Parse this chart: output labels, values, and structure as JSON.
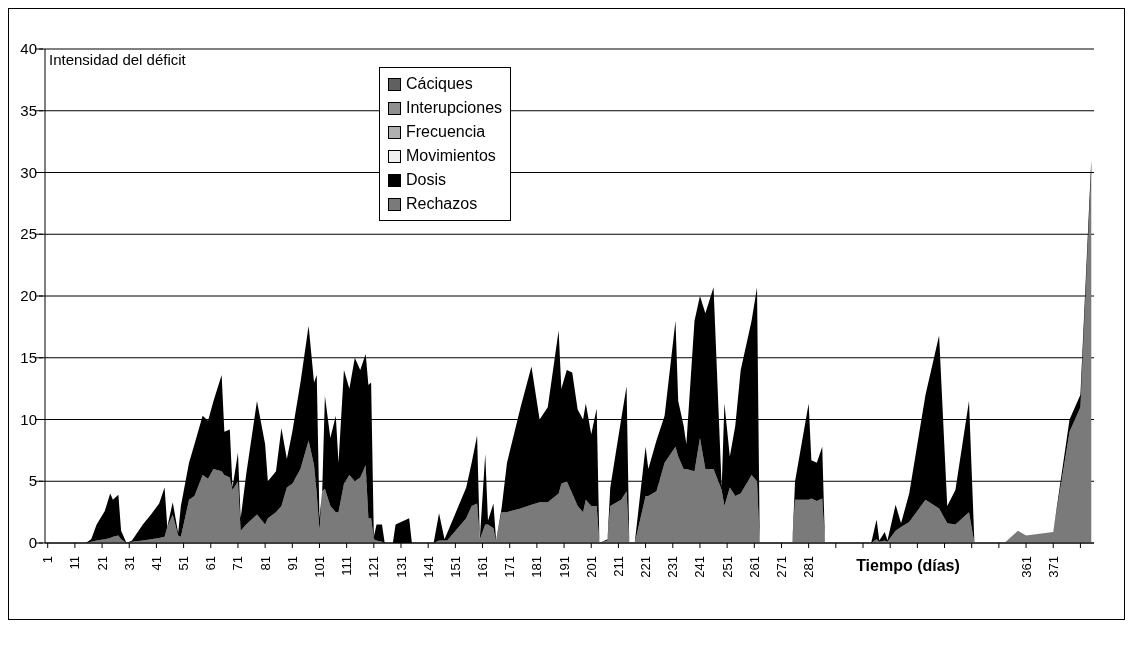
{
  "chart_data": {
    "type": "area",
    "stacked": true,
    "annotations": [
      "Intensidad del déficit"
    ],
    "xlabel": "Tiempo (días)",
    "x": [
      1,
      15,
      17,
      19,
      22,
      24,
      25,
      27,
      28,
      30,
      32,
      36,
      39,
      42,
      44,
      45,
      47,
      49,
      50,
      53,
      55,
      58,
      60,
      62,
      65,
      66,
      68,
      69,
      71,
      72,
      74,
      78,
      81,
      82,
      85,
      87,
      89,
      91,
      94,
      97,
      99,
      100,
      101,
      102,
      103,
      105,
      107,
      108,
      110,
      112,
      114,
      116,
      118,
      119,
      120,
      121,
      122,
      124,
      125,
      128,
      129,
      134,
      135,
      143,
      145,
      147,
      148,
      155,
      157,
      159,
      160,
      162,
      163,
      165,
      166,
      168,
      170,
      175,
      179,
      182,
      185,
      189,
      190,
      192,
      194,
      196,
      198,
      199,
      201,
      203,
      204,
      207,
      208,
      212,
      214,
      215,
      217,
      221,
      222,
      225,
      228,
      232,
      233,
      235,
      236,
      239,
      241,
      243,
      246,
      249,
      250,
      252,
      254,
      256,
      260,
      262,
      263,
      275,
      276,
      281,
      282,
      284,
      286,
      287,
      304,
      306,
      307,
      309,
      310,
      313,
      315,
      318,
      324,
      329,
      332,
      335,
      340,
      342,
      353,
      358,
      361,
      371,
      377,
      381,
      385
    ],
    "series": [
      {
        "name": "Rechazos",
        "color": "#7a7a7a",
        "values": [
          0,
          0,
          0.1,
          0.2,
          0.3,
          0.4,
          0.5,
          0.6,
          0.3,
          0,
          0.1,
          0.2,
          0.3,
          0.4,
          0.5,
          1.3,
          2.3,
          0.6,
          0.5,
          3.5,
          3.8,
          5.5,
          5.2,
          6,
          5.8,
          5.5,
          5.3,
          4.3,
          5,
          1,
          1.5,
          2.3,
          1.5,
          2,
          2.5,
          3,
          4.5,
          4.8,
          6,
          8.3,
          6.3,
          4,
          1,
          4.2,
          4.4,
          3,
          2.5,
          2.5,
          4.8,
          5.5,
          5,
          5.3,
          6.3,
          2,
          2,
          0.3,
          0.2,
          0.1,
          0,
          0,
          0,
          0,
          0,
          0,
          0.2,
          0.2,
          0.2,
          2,
          3,
          3.2,
          0.3,
          1.5,
          1.5,
          1.2,
          0.1,
          2.5,
          2.5,
          2.8,
          3.1,
          3.3,
          3.3,
          4,
          4.8,
          5,
          4,
          3,
          2.5,
          3.5,
          3,
          3,
          0,
          0.2,
          3,
          3.5,
          4.2,
          0,
          0,
          3.8,
          3.8,
          4.2,
          6.5,
          7.8,
          7,
          6,
          6,
          5.8,
          8.5,
          6,
          6,
          4.3,
          3,
          4.5,
          3.8,
          4,
          5.5,
          5,
          0,
          0,
          3.5,
          3.5,
          3.6,
          3.4,
          3.6,
          0,
          0,
          0.3,
          0.1,
          0.2,
          0.1,
          1,
          1.3,
          1.7,
          3.5,
          2.8,
          1.6,
          1.5,
          2.5,
          0,
          0,
          1,
          0.6,
          0.9,
          9,
          11,
          30
        ]
      },
      {
        "name": "Dosis",
        "color": "#000000",
        "values": [
          0,
          0,
          0.2,
          1.3,
          2.3,
          3.6,
          3,
          3.3,
          0.7,
          0,
          0.1,
          1.3,
          2,
          2.8,
          4,
          0,
          1,
          0.2,
          2.5,
          3,
          4.2,
          4.8,
          4.7,
          5.5,
          7.8,
          3.5,
          3.9,
          0.2,
          2.3,
          1,
          4,
          9.2,
          6.5,
          3,
          3.3,
          6.3,
          2.3,
          4.2,
          7,
          9.3,
          6.7,
          9.6,
          1,
          0,
          7.5,
          5.5,
          7.8,
          4,
          9.2,
          7,
          10,
          8.7,
          9,
          10.8,
          11,
          0.2,
          1.3,
          1.4,
          0,
          0,
          1.5,
          2,
          0,
          0,
          2.2,
          0.1,
          0.6,
          2.5,
          3.5,
          5.5,
          0,
          5.7,
          0.3,
          2,
          0.1,
          0.3,
          4,
          8.2,
          11.2,
          6.7,
          7.7,
          13.2,
          7.7,
          9,
          9.8,
          7.8,
          7.5,
          7.8,
          5.8,
          7.9,
          0,
          0.1,
          1.5,
          6.5,
          8.5,
          0,
          0,
          4,
          2.2,
          4.1,
          3.8,
          10.2,
          4.5,
          3.5,
          2,
          12.2,
          11.5,
          12.6,
          14.7,
          0.2,
          8.3,
          2.5,
          5.7,
          10,
          12.5,
          15.7,
          0,
          0,
          1.5,
          7.8,
          3.1,
          3.1,
          4.2,
          0,
          0,
          1.6,
          0.1,
          0.7,
          0.1,
          2.1,
          0.3,
          2.3,
          8.5,
          14,
          1.4,
          2.8,
          9,
          0,
          0,
          0,
          0,
          0,
          1,
          1,
          1
        ]
      },
      {
        "name": "Movimientos",
        "color": "#f0f0f0",
        "values": [
          null,
          null,
          null,
          null,
          null,
          null,
          null,
          null,
          null,
          null,
          null,
          null,
          null,
          null,
          null,
          null,
          null,
          null,
          null,
          null,
          null,
          null,
          null,
          null,
          null,
          null,
          null,
          null,
          null,
          null,
          null,
          null,
          null,
          null,
          null,
          null,
          null,
          null,
          null,
          null,
          null,
          null,
          null,
          null,
          null,
          null,
          null,
          null,
          null,
          null,
          null,
          null,
          null,
          null,
          null,
          null,
          null,
          null,
          null,
          null,
          null,
          null,
          null,
          null,
          null,
          null,
          null,
          null,
          null,
          null,
          null,
          null,
          null,
          null,
          null,
          null,
          null,
          null,
          null,
          null,
          null,
          null,
          null,
          null,
          null,
          null,
          null,
          null,
          null,
          null,
          null,
          null,
          null,
          null,
          null,
          null,
          null,
          null,
          null,
          null,
          null,
          null,
          null,
          null,
          null,
          null,
          null,
          null,
          null,
          null,
          null,
          null,
          null,
          null,
          null,
          null,
          null,
          null,
          null,
          null,
          null,
          null,
          null,
          null,
          null,
          null,
          null,
          null,
          null,
          null,
          null,
          null,
          null,
          null,
          null,
          null,
          null,
          null,
          null,
          null,
          null,
          null,
          null,
          null,
          null
        ]
      },
      {
        "name": "Frecuencia",
        "color": "#b0b0b0",
        "values": [
          null,
          null,
          null,
          null,
          null,
          null,
          null,
          null,
          null,
          null,
          null,
          null,
          null,
          null,
          null,
          null,
          null,
          null,
          null,
          null,
          null,
          null,
          null,
          null,
          null,
          null,
          null,
          null,
          null,
          null,
          null,
          null,
          null,
          null,
          null,
          null,
          null,
          null,
          null,
          null,
          null,
          null,
          null,
          null,
          null,
          null,
          null,
          null,
          null,
          null,
          null,
          null,
          null,
          null,
          null,
          null,
          null,
          null,
          null,
          null,
          null,
          null,
          null,
          null,
          null,
          null,
          null,
          null,
          null,
          null,
          null,
          null,
          null,
          null,
          null,
          null,
          null,
          null,
          null,
          null,
          null,
          null,
          null,
          null,
          null,
          null,
          null,
          null,
          null,
          null,
          null,
          null,
          null,
          null,
          null,
          null,
          null,
          null,
          null,
          null,
          null,
          null,
          null,
          null,
          null,
          null,
          null,
          null,
          null,
          null,
          null,
          null,
          null,
          null,
          null,
          null,
          null,
          null,
          null,
          null,
          null,
          null,
          null,
          null,
          null,
          null,
          null,
          null,
          null,
          null,
          null,
          null,
          null,
          null,
          null,
          null,
          null,
          null,
          null,
          null,
          null,
          null,
          null,
          null,
          null
        ]
      },
      {
        "name": "Interupciones",
        "color": "#909090",
        "values": [
          null,
          null,
          null,
          null,
          null,
          null,
          null,
          null,
          null,
          null,
          null,
          null,
          null,
          null,
          null,
          null,
          null,
          null,
          null,
          null,
          null,
          null,
          null,
          null,
          null,
          null,
          null,
          null,
          null,
          null,
          null,
          null,
          null,
          null,
          null,
          null,
          null,
          null,
          null,
          null,
          null,
          null,
          null,
          null,
          null,
          null,
          null,
          null,
          null,
          null,
          null,
          null,
          null,
          null,
          null,
          null,
          null,
          null,
          null,
          null,
          null,
          null,
          null,
          null,
          null,
          null,
          null,
          null,
          null,
          null,
          null,
          null,
          null,
          null,
          null,
          null,
          null,
          null,
          null,
          null,
          null,
          null,
          null,
          null,
          null,
          null,
          null,
          null,
          null,
          null,
          null,
          null,
          null,
          null,
          null,
          null,
          null,
          null,
          null,
          null,
          null,
          null,
          null,
          null,
          null,
          null,
          null,
          null,
          null,
          null,
          null,
          null,
          null,
          null,
          null,
          null,
          null,
          null,
          null,
          null,
          null,
          null,
          null,
          null,
          null,
          null,
          null,
          null,
          null,
          null,
          null,
          null,
          null,
          null,
          null,
          null,
          null,
          null,
          null,
          null,
          null,
          null,
          null,
          null,
          null
        ]
      },
      {
        "name": "Cáciques",
        "color": "#606060",
        "values": [
          null,
          null,
          null,
          null,
          null,
          null,
          null,
          null,
          null,
          null,
          null,
          null,
          null,
          null,
          null,
          null,
          null,
          null,
          null,
          null,
          null,
          null,
          null,
          null,
          null,
          null,
          null,
          null,
          null,
          null,
          null,
          null,
          null,
          null,
          null,
          null,
          null,
          null,
          null,
          null,
          null,
          null,
          null,
          null,
          null,
          null,
          null,
          null,
          null,
          null,
          null,
          null,
          null,
          null,
          null,
          null,
          null,
          null,
          null,
          null,
          null,
          null,
          null,
          null,
          null,
          null,
          null,
          null,
          null,
          null,
          null,
          null,
          null,
          null,
          null,
          null,
          null,
          null,
          null,
          null,
          null,
          null,
          null,
          null,
          null,
          null,
          null,
          null,
          null,
          null,
          null,
          null,
          null,
          null,
          null,
          null,
          null,
          null,
          null,
          null,
          null,
          null,
          null,
          null,
          null,
          null,
          null,
          null,
          null,
          null,
          null,
          null,
          null,
          null,
          null,
          null,
          null,
          null,
          null,
          null,
          null,
          null,
          null,
          null,
          null,
          null,
          null,
          null,
          null,
          null,
          null,
          null,
          null,
          null,
          null,
          null,
          null,
          null,
          null,
          null,
          null,
          null,
          null,
          null,
          null
        ]
      }
    ],
    "xlim": [
      0,
      386
    ],
    "xticks": [
      1,
      11,
      21,
      31,
      41,
      51,
      61,
      71,
      81,
      91,
      101,
      111,
      121,
      131,
      141,
      151,
      161,
      171,
      181,
      191,
      201,
      211,
      221,
      231,
      241,
      251,
      261,
      271,
      281,
      {
        "value": 291,
        "label": null
      },
      {
        "value": 301,
        "label": null
      },
      {
        "value": 311,
        "label": null
      },
      {
        "value": 321,
        "label": null
      },
      {
        "value": 331,
        "label": null
      },
      {
        "value": 341,
        "label": null
      },
      {
        "value": 351,
        "label": null
      },
      361,
      371,
      {
        "value": 381,
        "label": null
      }
    ],
    "ylim": [
      0,
      40
    ],
    "yticks": [
      0,
      5,
      10,
      15,
      20,
      25,
      30,
      35,
      40
    ],
    "grid": "y",
    "legend": "top"
  }
}
